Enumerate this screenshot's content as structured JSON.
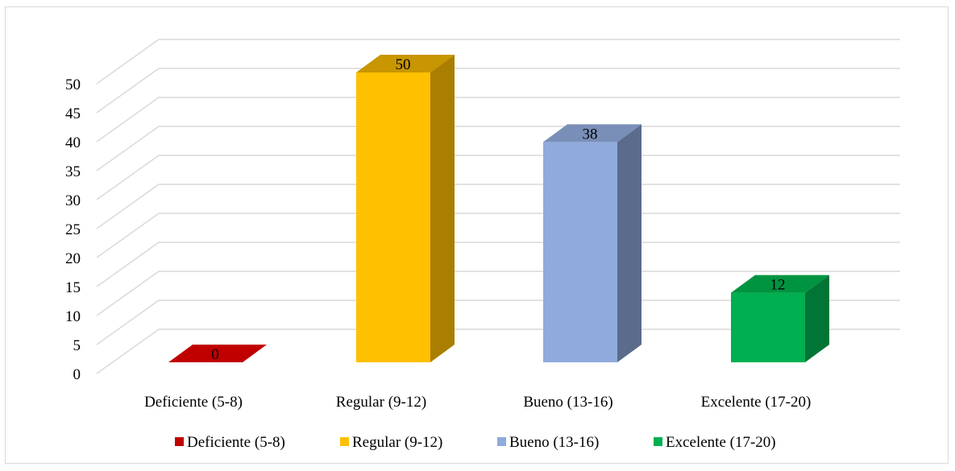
{
  "chart_data": {
    "type": "bar",
    "style": "3d-column",
    "categories": [
      "Deficiente (5-8)",
      "Regular (9-12)",
      "Bueno (13-16)",
      "Excelente (17-20)"
    ],
    "values": [
      0,
      50,
      38,
      12
    ],
    "data_labels": [
      "0",
      "50",
      "38",
      "12"
    ],
    "colors": [
      "#c00000",
      "#ffc000",
      "#8faadc",
      "#00b050"
    ],
    "side_colors": [
      "#900000",
      "#aa7e00",
      "#5b6b8c",
      "#007535"
    ],
    "top_colors": [
      "#c00000",
      "#c89600",
      "#7a8fb8",
      "#009440"
    ],
    "title": "",
    "xlabel": "",
    "ylabel": "",
    "ylim": [
      0,
      50
    ],
    "yticks": [
      "0",
      "5",
      "10",
      "15",
      "20",
      "25",
      "30",
      "35",
      "40",
      "45",
      "50"
    ],
    "grid": true,
    "legend_position": "bottom",
    "legend": [
      "Deficiente (5-8)",
      "Regular (9-12)",
      "Bueno (13-16)",
      "Excelente (17-20)"
    ]
  }
}
